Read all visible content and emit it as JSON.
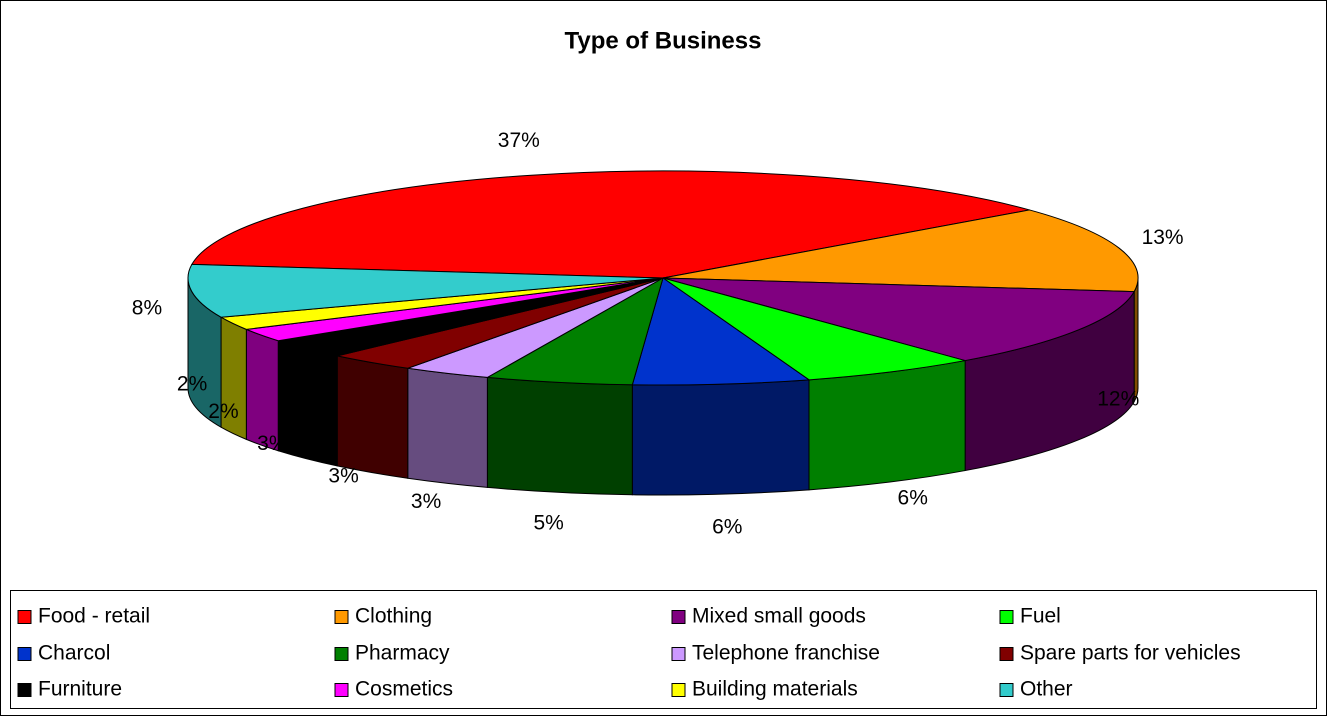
{
  "chart_data": {
    "type": "pie",
    "title": "Type of Business",
    "categories": [
      "Food - retail",
      "Clothing",
      "Mixed small goods",
      "Fuel",
      "Charcol",
      "Pharmacy",
      "Telephone franchise",
      "Spare parts for vehicles",
      "Furniture",
      "Cosmetics",
      "Building materials",
      "Other"
    ],
    "values": [
      37,
      13,
      12,
      6,
      6,
      5,
      3,
      3,
      3,
      2,
      2,
      8
    ],
    "value_labels": [
      "37%",
      "13%",
      "12%",
      "6%",
      "6%",
      "5%",
      "3%",
      "3%",
      "3%",
      "2%",
      "2%",
      "8%"
    ],
    "colors": [
      "#ff0000",
      "#ff9900",
      "#800080",
      "#00ff00",
      "#0033cc",
      "#008000",
      "#cc99ff",
      "#800000",
      "#000000",
      "#ff00ff",
      "#ffff00",
      "#33cccc"
    ],
    "legend": "bottom"
  }
}
